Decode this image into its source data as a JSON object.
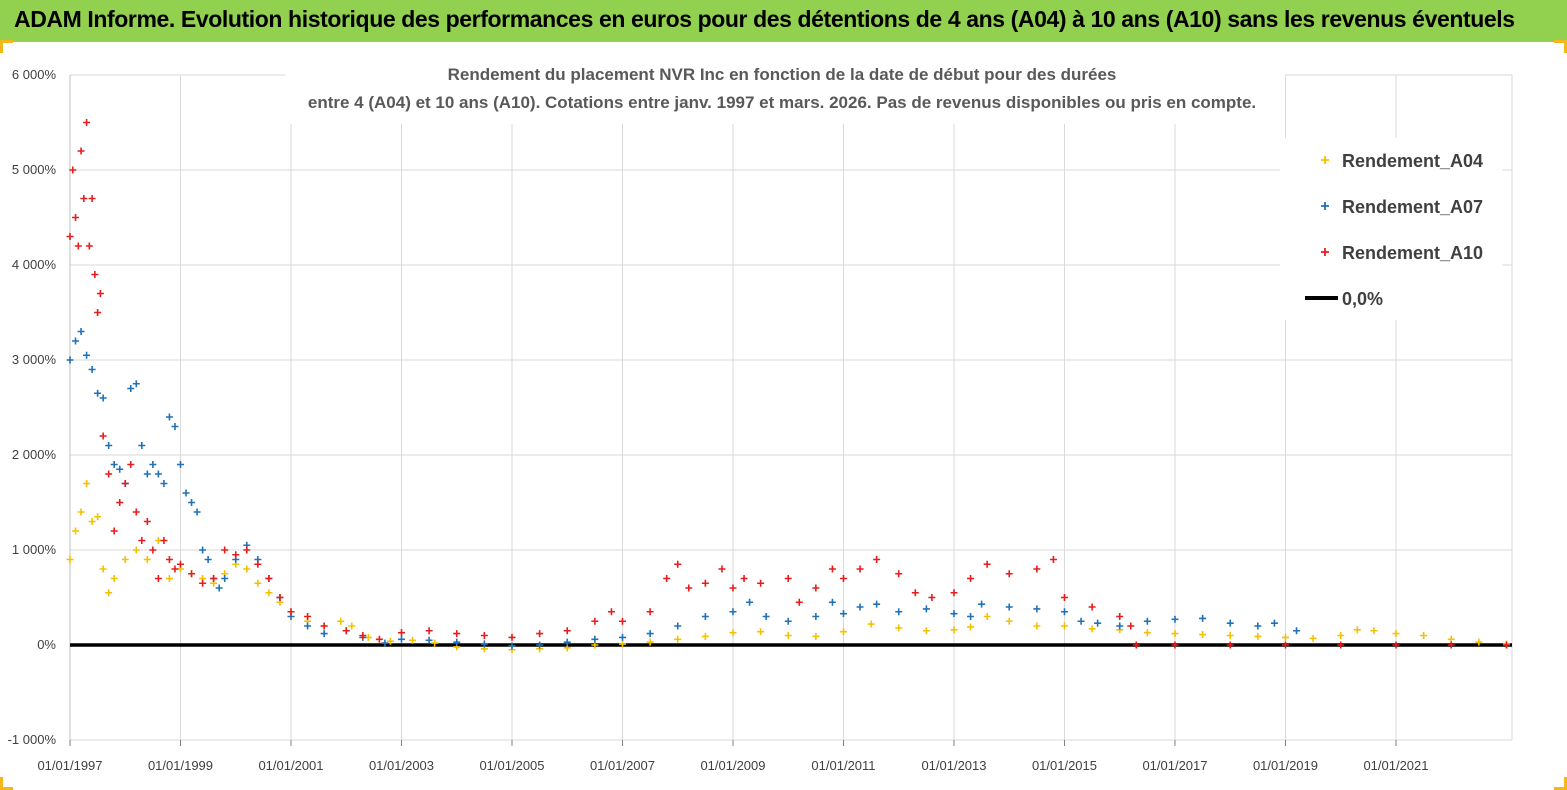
{
  "header": {
    "title": "ADAM Informe. Evolution historique des performances en euros pour des détentions de 4 ans (A04) à 10 ans (A10) sans les revenus éventuels"
  },
  "colors": {
    "banner": "#92d050",
    "A04": "#f5c000",
    "A07": "#1f72b8",
    "A10": "#e81c1c",
    "zero": "#000000",
    "grid": "#d9d9d9"
  },
  "chart_data": {
    "type": "scatter",
    "title_lines": [
      "Rendement du placement NVR Inc en fonction de la date de début pour des durées",
      "entre 4 (A04) et 10 ans (A10). Cotations entre janv. 1997 et mars. 2026. Pas de revenus disponibles ou pris en compte."
    ],
    "xlabel": "",
    "ylabel": "",
    "x_range": [
      1997.0,
      2023.1
    ],
    "ylim": [
      -1000,
      6000
    ],
    "y_ticks": [
      -1000,
      0,
      1000,
      2000,
      3000,
      4000,
      5000,
      6000
    ],
    "y_tick_labels": [
      "-1 000%",
      "0%",
      "1 000%",
      "2 000%",
      "3 000%",
      "4 000%",
      "5 000%",
      "6 000%"
    ],
    "x_ticks": [
      1997,
      1999,
      2001,
      2003,
      2005,
      2007,
      2009,
      2011,
      2013,
      2015,
      2017,
      2019,
      2021
    ],
    "x_tick_labels": [
      "01/01/1997",
      "01/01/1999",
      "01/01/2001",
      "01/01/2003",
      "01/01/2005",
      "01/01/2007",
      "01/01/2009",
      "01/01/2011",
      "01/01/2013",
      "01/01/2015",
      "01/01/2017",
      "01/01/2019",
      "01/01/2021"
    ],
    "grid": true,
    "legend_position": "top-right",
    "series": [
      {
        "name": "Rendement_A04",
        "marker": "+",
        "points": [
          [
            1997.0,
            900
          ],
          [
            1997.1,
            1200
          ],
          [
            1997.2,
            1400
          ],
          [
            1997.3,
            1700
          ],
          [
            1997.4,
            1300
          ],
          [
            1997.5,
            1350
          ],
          [
            1997.6,
            800
          ],
          [
            1997.7,
            550
          ],
          [
            1997.8,
            700
          ],
          [
            1998.0,
            900
          ],
          [
            1998.2,
            1000
          ],
          [
            1998.4,
            900
          ],
          [
            1998.6,
            1100
          ],
          [
            1998.8,
            700
          ],
          [
            1999.0,
            800
          ],
          [
            1999.2,
            750
          ],
          [
            1999.4,
            700
          ],
          [
            1999.6,
            650
          ],
          [
            1999.8,
            750
          ],
          [
            2000.0,
            850
          ],
          [
            2000.2,
            800
          ],
          [
            2000.4,
            650
          ],
          [
            2000.6,
            550
          ],
          [
            2000.8,
            450
          ],
          [
            2001.0,
            350
          ],
          [
            2001.3,
            250
          ],
          [
            2001.6,
            200
          ],
          [
            2001.9,
            250
          ],
          [
            2002.1,
            200
          ],
          [
            2002.4,
            80
          ],
          [
            2002.8,
            40
          ],
          [
            2003.2,
            50
          ],
          [
            2003.6,
            20
          ],
          [
            2004.0,
            -20
          ],
          [
            2004.5,
            -40
          ],
          [
            2005.0,
            -50
          ],
          [
            2005.5,
            -40
          ],
          [
            2006.0,
            -30
          ],
          [
            2006.5,
            0
          ],
          [
            2007.0,
            10
          ],
          [
            2007.5,
            30
          ],
          [
            2008.0,
            60
          ],
          [
            2008.5,
            90
          ],
          [
            2009.0,
            130
          ],
          [
            2009.5,
            140
          ],
          [
            2010.0,
            100
          ],
          [
            2010.5,
            90
          ],
          [
            2011.0,
            140
          ],
          [
            2011.5,
            220
          ],
          [
            2012.0,
            180
          ],
          [
            2012.5,
            150
          ],
          [
            2013.0,
            160
          ],
          [
            2013.3,
            190
          ],
          [
            2013.6,
            300
          ],
          [
            2014.0,
            250
          ],
          [
            2014.5,
            200
          ],
          [
            2015.0,
            200
          ],
          [
            2015.5,
            170
          ],
          [
            2016.0,
            160
          ],
          [
            2016.5,
            130
          ],
          [
            2017.0,
            120
          ],
          [
            2017.5,
            110
          ],
          [
            2018.0,
            100
          ],
          [
            2018.5,
            90
          ],
          [
            2019.0,
            80
          ],
          [
            2019.5,
            70
          ],
          [
            2020.0,
            100
          ],
          [
            2020.3,
            160
          ],
          [
            2020.6,
            150
          ],
          [
            2021.0,
            120
          ],
          [
            2021.5,
            100
          ],
          [
            2022.0,
            60
          ],
          [
            2022.5,
            30
          ],
          [
            2023.0,
            10
          ]
        ]
      },
      {
        "name": "Rendement_A07",
        "marker": "+",
        "points": [
          [
            1997.0,
            3000
          ],
          [
            1997.1,
            3200
          ],
          [
            1997.2,
            3300
          ],
          [
            1997.3,
            3050
          ],
          [
            1997.4,
            2900
          ],
          [
            1997.5,
            2650
          ],
          [
            1997.6,
            2600
          ],
          [
            1997.7,
            2100
          ],
          [
            1997.8,
            1900
          ],
          [
            1997.9,
            1850
          ],
          [
            1998.0,
            1700
          ],
          [
            1998.1,
            2700
          ],
          [
            1998.2,
            2750
          ],
          [
            1998.3,
            2100
          ],
          [
            1998.4,
            1800
          ],
          [
            1998.5,
            1900
          ],
          [
            1998.6,
            1800
          ],
          [
            1998.7,
            1700
          ],
          [
            1998.8,
            2400
          ],
          [
            1998.9,
            2300
          ],
          [
            1999.0,
            1900
          ],
          [
            1999.1,
            1600
          ],
          [
            1999.2,
            1500
          ],
          [
            1999.3,
            1400
          ],
          [
            1999.4,
            1000
          ],
          [
            1999.5,
            900
          ],
          [
            1999.6,
            700
          ],
          [
            1999.7,
            600
          ],
          [
            1999.8,
            700
          ],
          [
            2000.0,
            900
          ],
          [
            2000.2,
            1050
          ],
          [
            2000.4,
            900
          ],
          [
            2000.6,
            700
          ],
          [
            2000.8,
            500
          ],
          [
            2001.0,
            300
          ],
          [
            2001.3,
            200
          ],
          [
            2001.6,
            120
          ],
          [
            2002.0,
            150
          ],
          [
            2002.3,
            80
          ],
          [
            2002.7,
            20
          ],
          [
            2003.0,
            60
          ],
          [
            2003.5,
            50
          ],
          [
            2004.0,
            30
          ],
          [
            2004.5,
            10
          ],
          [
            2005.0,
            -10
          ],
          [
            2005.5,
            0
          ],
          [
            2006.0,
            30
          ],
          [
            2006.5,
            60
          ],
          [
            2007.0,
            80
          ],
          [
            2007.5,
            120
          ],
          [
            2008.0,
            200
          ],
          [
            2008.5,
            300
          ],
          [
            2009.0,
            350
          ],
          [
            2009.3,
            450
          ],
          [
            2009.6,
            300
          ],
          [
            2010.0,
            250
          ],
          [
            2010.5,
            300
          ],
          [
            2010.8,
            450
          ],
          [
            2011.0,
            330
          ],
          [
            2011.3,
            400
          ],
          [
            2011.6,
            430
          ],
          [
            2012.0,
            350
          ],
          [
            2012.5,
            380
          ],
          [
            2013.0,
            330
          ],
          [
            2013.3,
            300
          ],
          [
            2013.5,
            430
          ],
          [
            2014.0,
            400
          ],
          [
            2014.5,
            380
          ],
          [
            2015.0,
            350
          ],
          [
            2015.3,
            250
          ],
          [
            2015.6,
            230
          ],
          [
            2016.0,
            200
          ],
          [
            2016.5,
            250
          ],
          [
            2017.0,
            270
          ],
          [
            2017.5,
            280
          ],
          [
            2018.0,
            230
          ],
          [
            2018.5,
            200
          ],
          [
            2018.8,
            230
          ],
          [
            2019.2,
            150
          ]
        ]
      },
      {
        "name": "Rendement_A10",
        "marker": "+",
        "points": [
          [
            1997.0,
            4300
          ],
          [
            1997.05,
            5000
          ],
          [
            1997.1,
            4500
          ],
          [
            1997.15,
            4200
          ],
          [
            1997.2,
            5200
          ],
          [
            1997.25,
            4700
          ],
          [
            1997.3,
            5500
          ],
          [
            1997.35,
            4200
          ],
          [
            1997.4,
            4700
          ],
          [
            1997.45,
            3900
          ],
          [
            1997.5,
            3500
          ],
          [
            1997.55,
            3700
          ],
          [
            1997.6,
            2200
          ],
          [
            1997.7,
            1800
          ],
          [
            1997.8,
            1200
          ],
          [
            1997.9,
            1500
          ],
          [
            1998.0,
            1700
          ],
          [
            1998.1,
            1900
          ],
          [
            1998.2,
            1400
          ],
          [
            1998.3,
            1100
          ],
          [
            1998.4,
            1300
          ],
          [
            1998.5,
            1000
          ],
          [
            1998.6,
            700
          ],
          [
            1998.7,
            1100
          ],
          [
            1998.8,
            900
          ],
          [
            1998.9,
            800
          ],
          [
            1999.0,
            850
          ],
          [
            1999.2,
            750
          ],
          [
            1999.4,
            650
          ],
          [
            1999.6,
            700
          ],
          [
            1999.8,
            1000
          ],
          [
            2000.0,
            950
          ],
          [
            2000.2,
            1000
          ],
          [
            2000.4,
            850
          ],
          [
            2000.6,
            700
          ],
          [
            2000.8,
            500
          ],
          [
            2001.0,
            350
          ],
          [
            2001.3,
            300
          ],
          [
            2001.6,
            200
          ],
          [
            2002.0,
            150
          ],
          [
            2002.3,
            100
          ],
          [
            2002.6,
            60
          ],
          [
            2003.0,
            130
          ],
          [
            2003.5,
            150
          ],
          [
            2004.0,
            120
          ],
          [
            2004.5,
            100
          ],
          [
            2005.0,
            80
          ],
          [
            2005.5,
            120
          ],
          [
            2006.0,
            150
          ],
          [
            2006.5,
            250
          ],
          [
            2006.8,
            350
          ],
          [
            2007.0,
            250
          ],
          [
            2007.5,
            350
          ],
          [
            2007.8,
            700
          ],
          [
            2008.0,
            850
          ],
          [
            2008.2,
            600
          ],
          [
            2008.5,
            650
          ],
          [
            2008.8,
            800
          ],
          [
            2009.0,
            600
          ],
          [
            2009.2,
            700
          ],
          [
            2009.5,
            650
          ],
          [
            2010.0,
            700
          ],
          [
            2010.2,
            450
          ],
          [
            2010.5,
            600
          ],
          [
            2010.8,
            800
          ],
          [
            2011.0,
            700
          ],
          [
            2011.3,
            800
          ],
          [
            2011.6,
            900
          ],
          [
            2012.0,
            750
          ],
          [
            2012.3,
            550
          ],
          [
            2012.6,
            500
          ],
          [
            2013.0,
            550
          ],
          [
            2013.3,
            700
          ],
          [
            2013.6,
            850
          ],
          [
            2014.0,
            750
          ],
          [
            2014.5,
            800
          ],
          [
            2014.8,
            900
          ],
          [
            2015.0,
            500
          ],
          [
            2015.5,
            400
          ],
          [
            2016.0,
            300
          ],
          [
            2016.2,
            200
          ],
          [
            2016.3,
            0
          ],
          [
            2017.0,
            0
          ],
          [
            2018.0,
            0
          ],
          [
            2019.0,
            0
          ],
          [
            2020.0,
            0
          ],
          [
            2021.0,
            0
          ],
          [
            2022.0,
            0
          ],
          [
            2023.0,
            0
          ]
        ]
      },
      {
        "name": "0,0%",
        "marker": "line",
        "points": [
          [
            1997.0,
            0
          ],
          [
            2023.1,
            0
          ]
        ]
      }
    ]
  }
}
